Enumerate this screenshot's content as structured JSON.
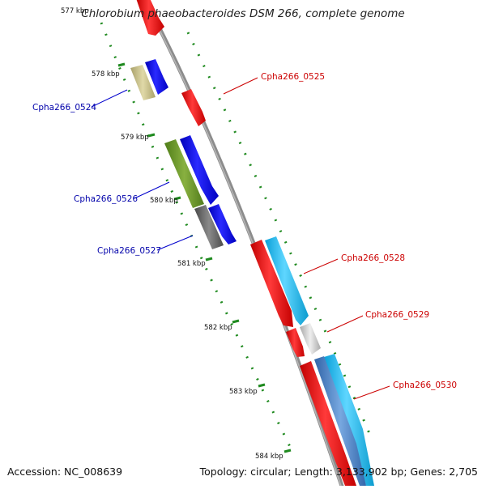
{
  "title": "Chlorobium phaeobacteroides DSM 266, complete genome",
  "accession": "Accession: NC_008639",
  "topology": "Topology: circular; Length: 3,133,902 bp; Genes: 2,705",
  "kbp_ticks": [
    "577 kbp",
    "578 kbp",
    "579 kbp",
    "580 kbp",
    "581 kbp",
    "582 kbp",
    "583 kbp",
    "584 kbp"
  ],
  "gene_labels": {
    "g0524": "Cpha266_0524",
    "g0525": "Cpha266_0525",
    "g0526": "Cpha266_0526",
    "g0527": "Cpha266_0527",
    "g0528": "Cpha266_0528",
    "g0529": "Cpha266_0529",
    "g0530": "Cpha266_0530"
  },
  "colors": {
    "backbone": "#8c8c8c",
    "forward": "#ff0000",
    "reverse": "#0000ff",
    "reverse_label": "#0000aa",
    "forward_label": "#cc0000",
    "ticks": "#1f8a1f",
    "cog_khaki": "#c8c08a",
    "cog_olive": "#6f9a2a",
    "cog_dark": "#666666",
    "cog_cyan": "#22b8e8",
    "cog_light": "#cfcfcf",
    "cog_steel": "#4a86c8"
  }
}
